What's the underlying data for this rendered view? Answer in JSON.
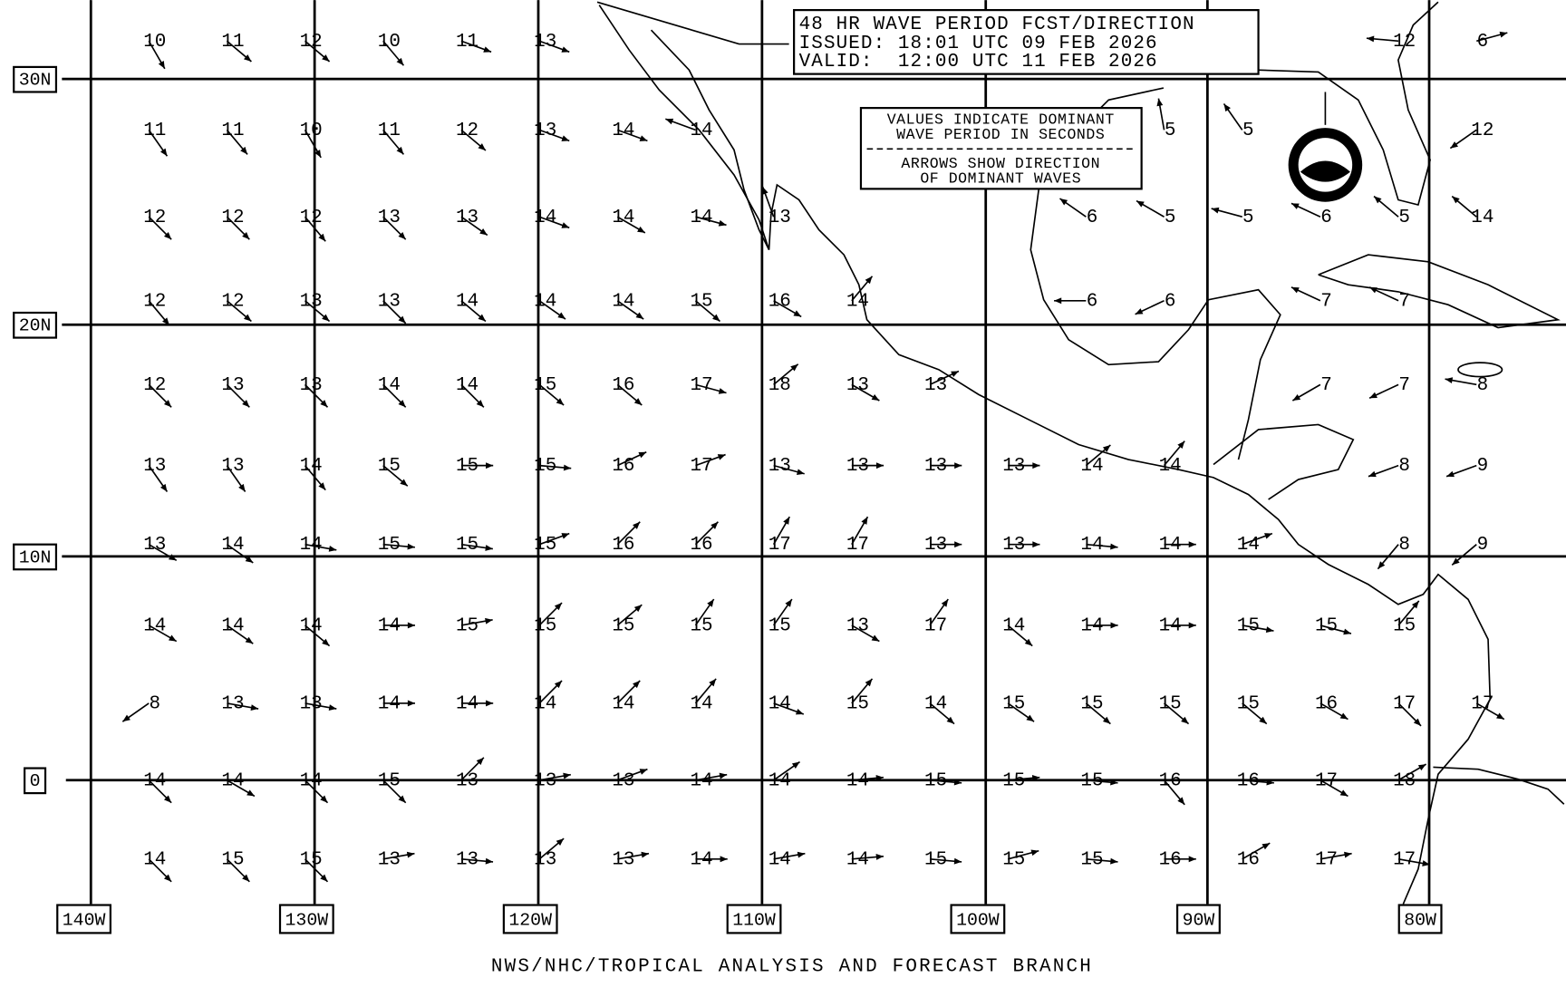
{
  "header": {
    "title": "48 HR WAVE PERIOD FCST/DIRECTION",
    "issued": "ISSUED: 18:01 UTC 09 FEB 2026",
    "valid": "VALID:  12:00 UTC 11 FEB 2026"
  },
  "legend_box": {
    "line1": "VALUES INDICATE DOMINANT",
    "line2": "WAVE PERIOD IN SECONDS",
    "line3": "ARROWS SHOW DIRECTION",
    "line4": "OF DOMINANT WAVES"
  },
  "grid": {
    "lat_labels": [
      "30N",
      "20N",
      "10N",
      "0"
    ],
    "lon_labels": [
      "140W",
      "130W",
      "120W",
      "110W",
      "100W",
      "90W",
      "80W"
    ]
  },
  "rows": [
    [
      {
        "label": "10",
        "dir": 60
      },
      {
        "label": "11",
        "dir": 40
      },
      {
        "label": "12",
        "dir": 40
      },
      {
        "label": "10",
        "dir": 50
      },
      {
        "label": "11",
        "dir": 20
      },
      {
        "label": "13",
        "dir": 20
      },
      null,
      null,
      null,
      null,
      null,
      null,
      null,
      null,
      null,
      null,
      {
        "label": "12",
        "dir": 185
      },
      {
        "label": "6",
        "dir": -15
      }
    ],
    [
      {
        "label": "11",
        "dir": 55
      },
      {
        "label": "11",
        "dir": 50
      },
      {
        "label": "10",
        "dir": 60
      },
      {
        "label": "11",
        "dir": 50
      },
      {
        "label": "12",
        "dir": 40
      },
      {
        "label": "13",
        "dir": 20
      },
      {
        "label": "14",
        "dir": 20
      },
      {
        "label": "14",
        "dir": 200
      },
      null,
      null,
      null,
      null,
      null,
      {
        "label": "5",
        "dir": -100
      },
      {
        "label": "5",
        "dir": -125
      },
      null,
      null,
      {
        "label": "12",
        "dir": 145
      }
    ],
    [
      {
        "label": "12",
        "dir": 45
      },
      {
        "label": "12",
        "dir": 45
      },
      {
        "label": "12",
        "dir": 50
      },
      {
        "label": "13",
        "dir": 45
      },
      {
        "label": "13",
        "dir": 35
      },
      {
        "label": "14",
        "dir": 20
      },
      {
        "label": "14",
        "dir": 30
      },
      {
        "label": "14",
        "dir": 15
      },
      {
        "label": "13",
        "dir": -110
      },
      null,
      null,
      null,
      {
        "label": "6",
        "dir": -145
      },
      {
        "label": "5",
        "dir": -150
      },
      {
        "label": "5",
        "dir": -165
      },
      {
        "label": "6",
        "dir": -155
      },
      {
        "label": "5",
        "dir": -140
      },
      {
        "label": "14",
        "dir": -140
      }
    ],
    [
      {
        "label": "12",
        "dir": 50
      },
      {
        "label": "12",
        "dir": 40
      },
      {
        "label": "13",
        "dir": 40
      },
      {
        "label": "13",
        "dir": 45
      },
      {
        "label": "14",
        "dir": 40
      },
      {
        "label": "14",
        "dir": 35
      },
      {
        "label": "14",
        "dir": 35
      },
      {
        "label": "15",
        "dir": 40
      },
      {
        "label": "16",
        "dir": 30
      },
      {
        "label": "14",
        "dir": -50
      },
      null,
      null,
      {
        "label": "6",
        "dir": 180
      },
      {
        "label": "6",
        "dir": 155
      },
      null,
      {
        "label": "7",
        "dir": -155
      },
      {
        "label": "7",
        "dir": -155
      },
      null
    ],
    [
      {
        "label": "12",
        "dir": 45
      },
      {
        "label": "13",
        "dir": 45
      },
      {
        "label": "13",
        "dir": 45
      },
      {
        "label": "14",
        "dir": 45
      },
      {
        "label": "14",
        "dir": 45
      },
      {
        "label": "15",
        "dir": 40
      },
      {
        "label": "16",
        "dir": 40
      },
      {
        "label": "17",
        "dir": 15
      },
      {
        "label": "18",
        "dir": -40
      },
      {
        "label": "13",
        "dir": 30
      },
      {
        "label": "13",
        "dir": -25
      },
      null,
      null,
      null,
      null,
      {
        "label": "7",
        "dir": 150
      },
      {
        "label": "7",
        "dir": 155
      },
      {
        "label": "8",
        "dir": -170
      }
    ],
    [
      {
        "label": "13",
        "dir": 55
      },
      {
        "label": "13",
        "dir": 55
      },
      {
        "label": "14",
        "dir": 50
      },
      {
        "label": "15",
        "dir": 40
      },
      {
        "label": "15",
        "dir": 0
      },
      {
        "label": "15",
        "dir": 5
      },
      {
        "label": "16",
        "dir": -25
      },
      {
        "label": "17",
        "dir": -20
      },
      {
        "label": "13",
        "dir": 15
      },
      {
        "label": "13",
        "dir": 0
      },
      {
        "label": "13",
        "dir": 0
      },
      {
        "label": "13",
        "dir": 0
      },
      {
        "label": "14",
        "dir": -40
      },
      {
        "label": "14",
        "dir": -50
      },
      null,
      null,
      {
        "label": "8",
        "dir": 160
      },
      {
        "label": "9",
        "dir": 160
      }
    ],
    [
      {
        "label": "13",
        "dir": 30
      },
      {
        "label": "14",
        "dir": 35
      },
      {
        "label": "14",
        "dir": 10
      },
      {
        "label": "15",
        "dir": 5
      },
      {
        "label": "15",
        "dir": 8
      },
      {
        "label": "15",
        "dir": -20
      },
      {
        "label": "16",
        "dir": -45
      },
      {
        "label": "16",
        "dir": -45
      },
      {
        "label": "17",
        "dir": -60
      },
      {
        "label": "17",
        "dir": -60
      },
      {
        "label": "13",
        "dir": 0
      },
      {
        "label": "13",
        "dir": 0
      },
      {
        "label": "14",
        "dir": 5
      },
      {
        "label": "14",
        "dir": 0
      },
      {
        "label": "14",
        "dir": -20
      },
      null,
      {
        "label": "8",
        "dir": 130
      },
      {
        "label": "9",
        "dir": 140
      }
    ],
    [
      {
        "label": "14",
        "dir": 30
      },
      {
        "label": "14",
        "dir": 35
      },
      {
        "label": "14",
        "dir": 40
      },
      {
        "label": "14",
        "dir": 0
      },
      {
        "label": "15",
        "dir": -10
      },
      {
        "label": "15",
        "dir": -45
      },
      {
        "label": "15",
        "dir": -40
      },
      {
        "label": "15",
        "dir": -55
      },
      {
        "label": "15",
        "dir": -55
      },
      {
        "label": "13",
        "dir": 30
      },
      {
        "label": "17",
        "dir": -55
      },
      {
        "label": "14",
        "dir": 40
      },
      {
        "label": "14",
        "dir": 0
      },
      {
        "label": "14",
        "dir": 0
      },
      {
        "label": "15",
        "dir": 10
      },
      {
        "label": "15",
        "dir": 15
      },
      {
        "label": "15",
        "dir": -50
      },
      null
    ],
    [
      {
        "label": "8",
        "dir": 145
      },
      {
        "label": "13",
        "dir": 10
      },
      {
        "label": "13",
        "dir": 10
      },
      {
        "label": "14",
        "dir": 0
      },
      {
        "label": "14",
        "dir": 0
      },
      {
        "label": "14",
        "dir": -45
      },
      {
        "label": "14",
        "dir": -45
      },
      {
        "label": "14",
        "dir": -50
      },
      {
        "label": "14",
        "dir": 20
      },
      {
        "label": "15",
        "dir": -50
      },
      {
        "label": "14",
        "dir": 40
      },
      {
        "label": "15",
        "dir": 35
      },
      {
        "label": "15",
        "dir": 40
      },
      {
        "label": "15",
        "dir": 40
      },
      {
        "label": "15",
        "dir": 40
      },
      {
        "label": "16",
        "dir": 30
      },
      {
        "label": "17",
        "dir": 45
      },
      {
        "label": "17",
        "dir": 30
      }
    ],
    [
      {
        "label": "14",
        "dir": 45
      },
      {
        "label": "14",
        "dir": 30
      },
      {
        "label": "14",
        "dir": 45
      },
      {
        "label": "15",
        "dir": 45
      },
      {
        "label": "13",
        "dir": -45
      },
      {
        "label": "13",
        "dir": -10
      },
      {
        "label": "13",
        "dir": -20
      },
      {
        "label": "14",
        "dir": -10
      },
      {
        "label": "14",
        "dir": -35
      },
      {
        "label": "14",
        "dir": -5
      },
      {
        "label": "15",
        "dir": 5
      },
      {
        "label": "15",
        "dir": -5
      },
      {
        "label": "15",
        "dir": 5
      },
      {
        "label": "16",
        "dir": 50
      },
      {
        "label": "16",
        "dir": 5
      },
      {
        "label": "17",
        "dir": 30
      },
      {
        "label": "18",
        "dir": -30
      },
      null
    ],
    [
      {
        "label": "14",
        "dir": 45
      },
      {
        "label": "15",
        "dir": 45
      },
      {
        "label": "15",
        "dir": 45
      },
      {
        "label": "13",
        "dir": -10
      },
      {
        "label": "13",
        "dir": 5
      },
      {
        "label": "13",
        "dir": -40
      },
      {
        "label": "13",
        "dir": -10
      },
      {
        "label": "14",
        "dir": 0
      },
      {
        "label": "14",
        "dir": -10
      },
      {
        "label": "14",
        "dir": -5
      },
      {
        "label": "15",
        "dir": 5
      },
      {
        "label": "15",
        "dir": -15
      },
      {
        "label": "15",
        "dir": 5
      },
      {
        "label": "16",
        "dir": 0
      },
      {
        "label": "16",
        "dir": -30
      },
      {
        "label": "17",
        "dir": -10
      },
      {
        "label": "17",
        "dir": 10
      },
      null
    ]
  ],
  "footer": "NWS/NHC/TROPICAL ANALYSIS AND FORECAST BRANCH"
}
